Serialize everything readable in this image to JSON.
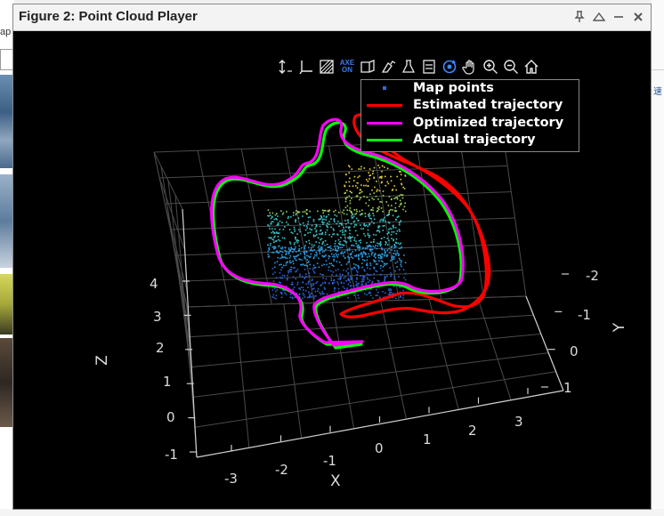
{
  "background": {
    "left_fragment_text": "ap"
  },
  "window": {
    "title": "Figure 2: Point Cloud Player",
    "controls": [
      {
        "name": "pin-icon",
        "glyph": "📌"
      },
      {
        "name": "undock-icon",
        "glyph": "△"
      },
      {
        "name": "minimize-icon",
        "glyph": "–"
      },
      {
        "name": "close-icon",
        "glyph": "✕"
      }
    ]
  },
  "toolbar": {
    "axes_toggle_top": "AXE",
    "axes_toggle_bottom": "ON",
    "tools": [
      "vertical-axis-icon",
      "view-plane-icon",
      "background-color-icon",
      "axes-toggle-icon",
      "projection-icon",
      "colormap-icon",
      "legend-icon",
      "rotate-icon",
      "pan-icon",
      "zoom-in-icon",
      "zoom-out-icon",
      "home-icon"
    ]
  },
  "legend": {
    "items": [
      {
        "label": "Map points",
        "color": "#2a6fd6",
        "style": "dot"
      },
      {
        "label": "Estimated trajectory",
        "color": "#ff0000",
        "style": "line"
      },
      {
        "label": "Optimized trajectory",
        "color": "#ff00ff",
        "style": "line"
      },
      {
        "label": "Actual trajectory",
        "color": "#00ff00",
        "style": "line"
      }
    ]
  },
  "axes": {
    "x_label": "X",
    "y_label": "Y",
    "z_label": "Z",
    "x_ticks": [
      "-3",
      "-2",
      "-1",
      "0",
      "1",
      "2",
      "3"
    ],
    "y_ticks": [
      "-2",
      "-1",
      "0",
      "1"
    ],
    "z_ticks": [
      "-1",
      "0",
      "1",
      "2",
      "3",
      "4"
    ]
  },
  "colors": {
    "estimated": "#ff0000",
    "optimized": "#ff00ff",
    "actual": "#00ff00",
    "grid": "#4a4a4a",
    "axis": "#cfcfcf"
  }
}
